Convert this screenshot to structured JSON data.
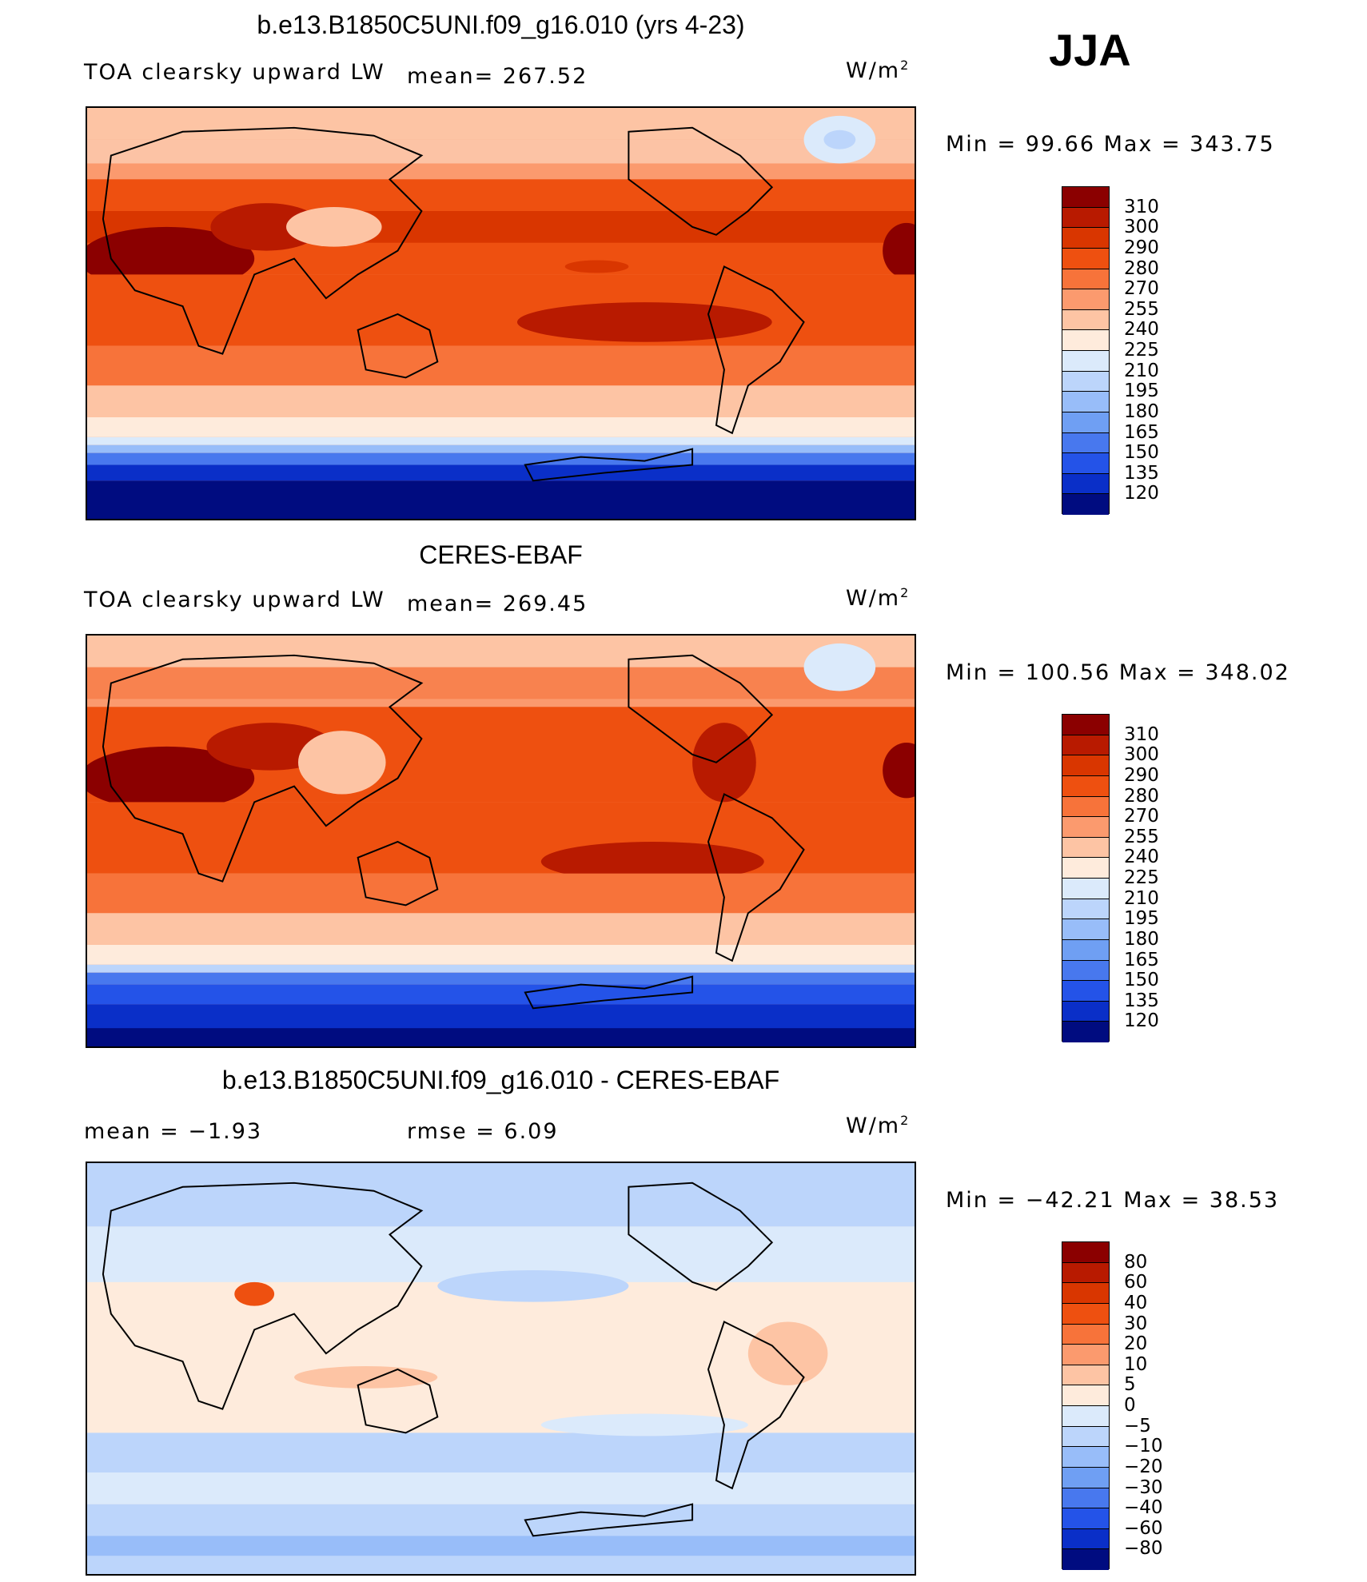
{
  "season": "JJA",
  "panels": [
    {
      "title": "b.e13.B1850C5UNI.f09_g16.010 (yrs 4-23)",
      "left_label": "TOA clearsky upward LW",
      "mid_label": "mean= 267.52",
      "units": "W/m",
      "units_sup": "2",
      "minmax": "Min =   99.66 Max = 343.75",
      "colorbar": {
        "labels": [
          "310",
          "300",
          "290",
          "280",
          "270",
          "255",
          "240",
          "225",
          "210",
          "195",
          "180",
          "165",
          "150",
          "135",
          "120"
        ],
        "colors": [
          "#8b0000",
          "#b81a00",
          "#d93600",
          "#ee5010",
          "#f7733a",
          "#fb9a6e",
          "#fdc4a4",
          "#feebdc",
          "#dbeafb",
          "#bcd5fb",
          "#98bdf9",
          "#6f9ff3",
          "#4878ee",
          "#2453e8",
          "#0a2fc8",
          "#000c80"
        ]
      }
    },
    {
      "title": "CERES-EBAF",
      "left_label": "TOA clearsky upward LW",
      "mid_label": "mean= 269.45",
      "units": "W/m",
      "units_sup": "2",
      "minmax": "Min = 100.56 Max = 348.02",
      "colorbar": {
        "labels": [
          "310",
          "300",
          "290",
          "280",
          "270",
          "255",
          "240",
          "225",
          "210",
          "195",
          "180",
          "165",
          "150",
          "135",
          "120"
        ],
        "colors": [
          "#8b0000",
          "#b81a00",
          "#d93600",
          "#ee5010",
          "#f7733a",
          "#fb9a6e",
          "#fdc4a4",
          "#feebdc",
          "#dbeafb",
          "#bcd5fb",
          "#98bdf9",
          "#6f9ff3",
          "#4878ee",
          "#2453e8",
          "#0a2fc8",
          "#000c80"
        ]
      }
    },
    {
      "title": "b.e13.B1850C5UNI.f09_g16.010 - CERES-EBAF",
      "left_label": "mean =   −1.93",
      "mid_label": "rmse =    6.09",
      "units": "W/m",
      "units_sup": "2",
      "minmax": "Min = −42.21 Max =   38.53",
      "colorbar": {
        "labels": [
          "80",
          "60",
          "40",
          "30",
          "20",
          "10",
          "5",
          "0",
          "−5",
          "−10",
          "−20",
          "−30",
          "−40",
          "−60",
          "−80"
        ],
        "colors": [
          "#8b0000",
          "#b81a00",
          "#d93600",
          "#ee5010",
          "#f7733a",
          "#fb9a6e",
          "#fdc4a4",
          "#feebdc",
          "#dbeafb",
          "#bcd5fb",
          "#98bdf9",
          "#6f9ff3",
          "#4878ee",
          "#2453e8",
          "#0a2fc8",
          "#000c80"
        ]
      }
    }
  ]
}
